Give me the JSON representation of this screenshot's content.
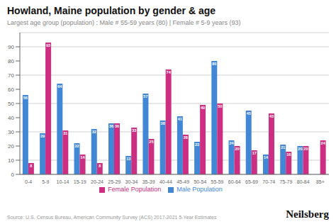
{
  "chart_data": {
    "type": "bar",
    "title": "Howland, Maine population by gender & age",
    "subtitle": "Largest age group (population) : Male # 55-59 years (80) | Female # 5-9 years (93)",
    "categories": [
      "0-4",
      "5-9",
      "10-14",
      "15-19",
      "20-24",
      "25-29",
      "30-34",
      "35-39",
      "40-44",
      "45-49",
      "50-54",
      "55-59",
      "60-64",
      "65-69",
      "70-74",
      "75-79",
      "80-84",
      "85+"
    ],
    "series": [
      {
        "name": "Male Population",
        "color": "#4287d6",
        "values": [
          56,
          29,
          64,
          22,
          32,
          36,
          13,
          57,
          38,
          41,
          23,
          80,
          24,
          45,
          14,
          21,
          20,
          0
        ]
      },
      {
        "name": "Female Population",
        "color": "#cc2f82",
        "values": [
          8,
          93,
          31,
          14,
          8,
          36,
          33,
          25,
          74,
          28,
          49,
          50,
          20,
          17,
          43,
          16,
          20,
          24
        ]
      }
    ],
    "ylim": [
      0,
      100
    ],
    "yticks": [
      0,
      10,
      20,
      30,
      40,
      50,
      60,
      70,
      80,
      90
    ],
    "grid": true,
    "legend": "bottom",
    "data_labels": true,
    "annotations": [
      "Source: U.S. Census Bureau, American Community Survey (ACS) 2017-2021 5-Year Estimates",
      "Neilsberg"
    ]
  }
}
